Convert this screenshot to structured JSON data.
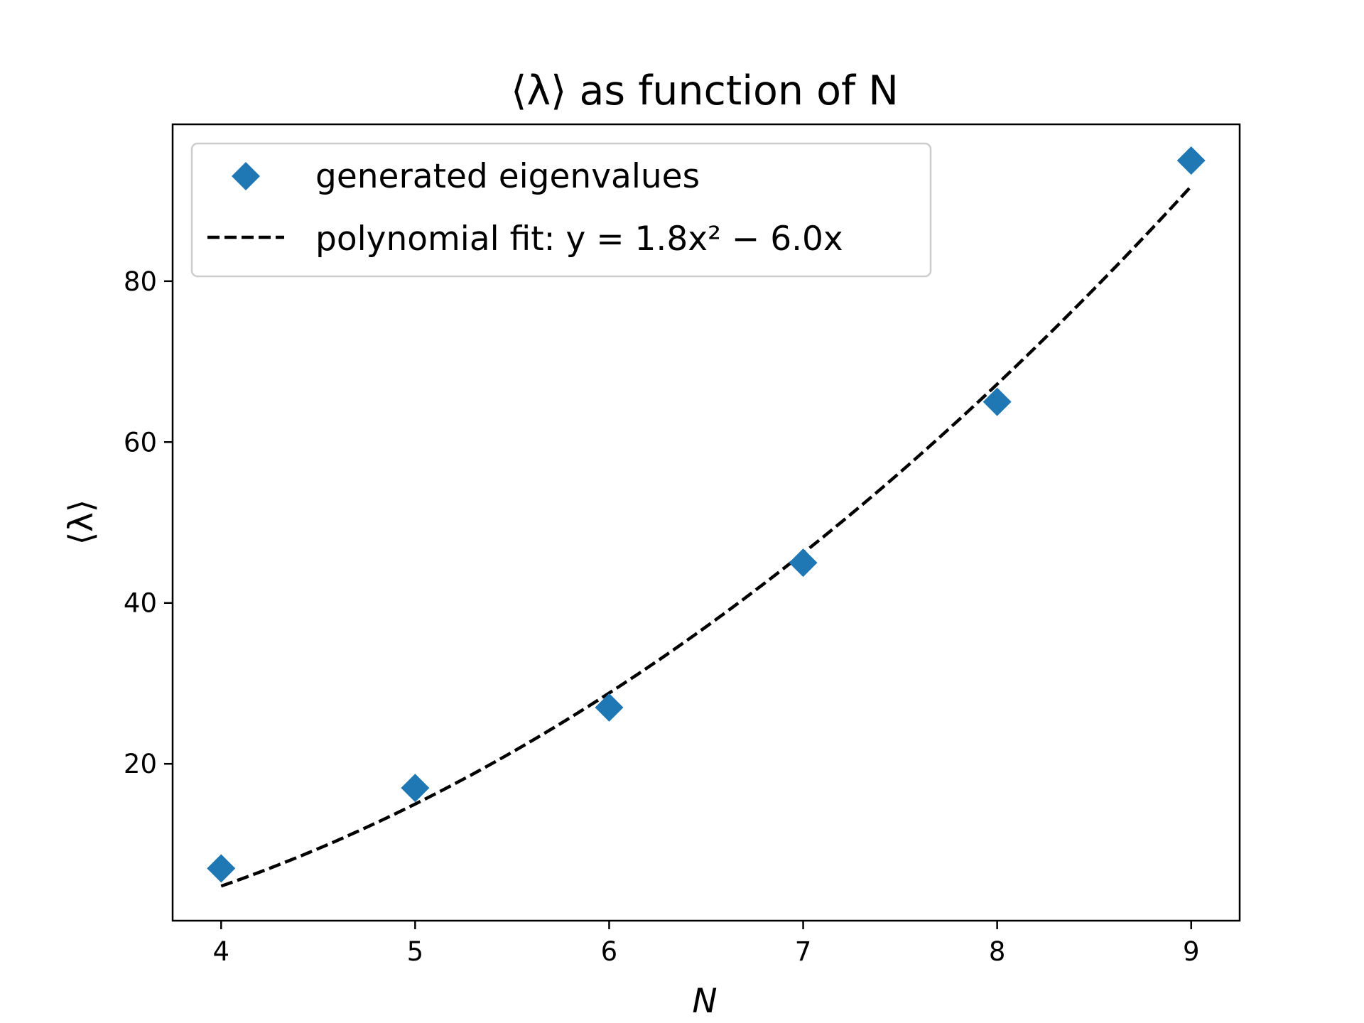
{
  "chart_data": {
    "type": "scatter",
    "title": "⟨λ⟩ as function of N",
    "xlabel": "N",
    "ylabel": "⟨λ⟩",
    "xlim": [
      3.75,
      9.25
    ],
    "ylim": [
      0.5,
      99.5
    ],
    "x_ticks": [
      4,
      5,
      6,
      7,
      8,
      9
    ],
    "y_ticks": [
      20,
      40,
      60,
      80
    ],
    "grid": false,
    "legend_position": "top-left",
    "series": [
      {
        "name": "generated eigenvalues",
        "kind": "scatter",
        "marker": "diamond",
        "color": "#1f77b4",
        "x": [
          4,
          5,
          6,
          7,
          8,
          9
        ],
        "y": [
          7,
          17,
          27,
          45,
          65,
          95
        ]
      },
      {
        "name": "polynomial fit: y = 1.8x² − 6.0x",
        "kind": "line",
        "style": "dashed",
        "color": "#000000",
        "a": 1.8,
        "b": -6.0,
        "x_range": [
          4,
          9
        ]
      }
    ]
  }
}
